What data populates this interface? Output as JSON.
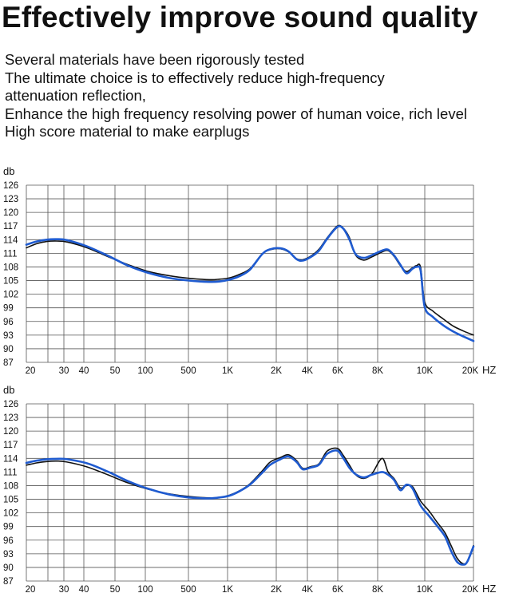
{
  "header": {
    "title": "Effectively improve sound quality",
    "lines": [
      "Several materials have been rigorously tested",
      "The ultimate choice is to effectively reduce high-frequency",
      "attenuation reflection,",
      "Enhance the high frequency resolving power of human voice, rich level",
      "High score material to make earplugs"
    ]
  },
  "colors": {
    "series_black": "#111111",
    "series_blue": "#1f5bd0",
    "grid": "#555555"
  },
  "chart_data": [
    {
      "type": "line",
      "ylabel": "db",
      "xlabel": "HZ",
      "ylim": [
        87,
        126
      ],
      "yticks": [
        126,
        123,
        120,
        117,
        114,
        111,
        108,
        105,
        102,
        99,
        96,
        93,
        90,
        87
      ],
      "xticks": [
        "20",
        "30",
        "40",
        "50",
        "100",
        "500",
        "1K",
        "2K",
        "4K",
        "6K",
        "8K",
        "10K",
        "20K"
      ],
      "grid": true,
      "series": [
        {
          "color": "#111111",
          "points": [
            [
              0,
              112.2
            ],
            [
              0.5,
              113.1
            ],
            [
              1,
              113.6
            ],
            [
              1.5,
              113.7
            ],
            [
              2,
              113.5
            ],
            [
              3,
              112.2
            ],
            [
              4,
              110.3
            ],
            [
              5,
              108.5
            ],
            [
              6,
              107.0
            ],
            [
              7,
              106.1
            ],
            [
              8,
              105.5
            ],
            [
              9,
              105.2
            ],
            [
              9.5,
              105.3
            ],
            [
              10,
              105.6
            ],
            [
              10.5,
              106.4
            ],
            [
              11,
              107.6
            ],
            [
              11.6,
              110.8
            ],
            [
              12,
              111.8
            ],
            [
              12.5,
              112.0
            ],
            [
              12.9,
              111.3
            ],
            [
              13.3,
              109.8
            ],
            [
              13.6,
              109.6
            ],
            [
              14,
              110.4
            ],
            [
              14.4,
              111.9
            ],
            [
              14.8,
              114.4
            ],
            [
              15.3,
              117.0
            ],
            [
              15.6,
              116.5
            ],
            [
              15.9,
              114.4
            ],
            [
              16.2,
              110.6
            ],
            [
              16.6,
              109.5
            ],
            [
              17,
              110.2
            ],
            [
              17.5,
              111.3
            ],
            [
              17.8,
              111.6
            ],
            [
              18.1,
              110.3
            ],
            [
              18.4,
              108.3
            ],
            [
              18.7,
              107.0
            ],
            [
              19,
              107.8
            ],
            [
              19.2,
              108.3
            ],
            [
              19.4,
              107.9
            ],
            [
              19.6,
              100.3
            ],
            [
              20,
              98.3
            ],
            [
              20.5,
              96.6
            ],
            [
              21,
              95.0
            ],
            [
              21.5,
              93.9
            ],
            [
              22,
              93.0
            ]
          ]
        },
        {
          "color": "#1f5bd0",
          "points": [
            [
              0,
              112.9
            ],
            [
              0.5,
              113.6
            ],
            [
              1,
              114.0
            ],
            [
              1.5,
              114.1
            ],
            [
              2,
              113.9
            ],
            [
              3,
              112.5
            ],
            [
              4,
              110.5
            ],
            [
              5,
              108.3
            ],
            [
              6,
              106.7
            ],
            [
              7,
              105.6
            ],
            [
              8,
              105.0
            ],
            [
              9,
              104.7
            ],
            [
              9.5,
              104.8
            ],
            [
              10,
              105.2
            ],
            [
              10.5,
              106.0
            ],
            [
              11,
              107.4
            ],
            [
              11.6,
              110.8
            ],
            [
              12,
              111.9
            ],
            [
              12.5,
              112.1
            ],
            [
              12.9,
              111.4
            ],
            [
              13.3,
              109.7
            ],
            [
              13.6,
              109.4
            ],
            [
              14,
              110.2
            ],
            [
              14.4,
              111.6
            ],
            [
              14.8,
              114.2
            ],
            [
              15.3,
              116.8
            ],
            [
              15.6,
              116.4
            ],
            [
              15.9,
              114.0
            ],
            [
              16.2,
              110.8
            ],
            [
              16.6,
              110.0
            ],
            [
              17,
              110.6
            ],
            [
              17.5,
              111.6
            ],
            [
              17.8,
              111.8
            ],
            [
              18.1,
              110.5
            ],
            [
              18.4,
              108.5
            ],
            [
              18.7,
              106.6
            ],
            [
              19,
              107.6
            ],
            [
              19.2,
              108.0
            ],
            [
              19.4,
              107.2
            ],
            [
              19.6,
              99.2
            ],
            [
              20,
              97.0
            ],
            [
              20.5,
              95.2
            ],
            [
              21,
              93.8
            ],
            [
              21.5,
              92.7
            ],
            [
              22,
              91.7
            ]
          ]
        }
      ]
    },
    {
      "type": "line",
      "ylabel": "db",
      "xlabel": "HZ",
      "ylim": [
        87,
        126
      ],
      "yticks": [
        126,
        123,
        120,
        117,
        114,
        111,
        108,
        105,
        102,
        99,
        96,
        93,
        90,
        87
      ],
      "xticks": [
        "20",
        "30",
        "40",
        "50",
        "100",
        "500",
        "1K",
        "2K",
        "4K",
        "6K",
        "8K",
        "10K",
        "20K"
      ],
      "grid": true,
      "series": [
        {
          "color": "#111111",
          "points": [
            [
              0,
              112.5
            ],
            [
              0.5,
              113.0
            ],
            [
              1,
              113.3
            ],
            [
              1.5,
              113.4
            ],
            [
              2,
              113.2
            ],
            [
              3,
              112.1
            ],
            [
              4,
              110.4
            ],
            [
              5,
              108.6
            ],
            [
              6,
              107.2
            ],
            [
              7,
              106.2
            ],
            [
              8,
              105.6
            ],
            [
              9,
              105.3
            ],
            [
              9.5,
              105.4
            ],
            [
              10,
              105.9
            ],
            [
              10.5,
              106.9
            ],
            [
              11,
              108.4
            ],
            [
              11.6,
              111.2
            ],
            [
              12,
              113.2
            ],
            [
              12.5,
              114.2
            ],
            [
              12.9,
              114.8
            ],
            [
              13.3,
              113.5
            ],
            [
              13.6,
              111.8
            ],
            [
              14,
              112.2
            ],
            [
              14.4,
              112.8
            ],
            [
              14.8,
              115.6
            ],
            [
              15.3,
              116.2
            ],
            [
              15.6,
              114.6
            ],
            [
              15.9,
              112.5
            ],
            [
              16.2,
              110.4
            ],
            [
              16.6,
              109.6
            ],
            [
              17,
              110.6
            ],
            [
              17.5,
              114.0
            ],
            [
              17.8,
              111.0
            ],
            [
              18.1,
              109.5
            ],
            [
              18.4,
              107.5
            ],
            [
              18.7,
              108.0
            ],
            [
              19,
              107.8
            ],
            [
              19.4,
              104.6
            ],
            [
              19.8,
              102.5
            ],
            [
              20.2,
              100.0
            ],
            [
              20.6,
              97.6
            ],
            [
              20.9,
              94.8
            ],
            [
              21.2,
              92.0
            ],
            [
              21.5,
              90.8
            ],
            [
              21.7,
              91.4
            ],
            [
              22,
              94.8
            ]
          ]
        },
        {
          "color": "#1f5bd0",
          "points": [
            [
              0,
              113.0
            ],
            [
              0.5,
              113.5
            ],
            [
              1,
              113.8
            ],
            [
              1.5,
              113.9
            ],
            [
              2,
              113.8
            ],
            [
              3,
              112.9
            ],
            [
              4,
              111.1
            ],
            [
              5,
              109.0
            ],
            [
              6,
              107.3
            ],
            [
              7,
              106.1
            ],
            [
              8,
              105.4
            ],
            [
              9,
              105.2
            ],
            [
              9.5,
              105.4
            ],
            [
              10,
              105.8
            ],
            [
              10.5,
              106.8
            ],
            [
              11,
              108.2
            ],
            [
              11.6,
              110.8
            ],
            [
              12,
              112.6
            ],
            [
              12.5,
              113.8
            ],
            [
              12.9,
              114.4
            ],
            [
              13.3,
              113.2
            ],
            [
              13.6,
              111.6
            ],
            [
              14,
              112.0
            ],
            [
              14.4,
              112.6
            ],
            [
              14.8,
              115.0
            ],
            [
              15.3,
              115.7
            ],
            [
              15.6,
              114.0
            ],
            [
              15.9,
              111.9
            ],
            [
              16.2,
              110.5
            ],
            [
              16.6,
              109.8
            ],
            [
              17,
              110.4
            ],
            [
              17.5,
              111.0
            ],
            [
              17.8,
              110.4
            ],
            [
              18.1,
              109.2
            ],
            [
              18.4,
              107.0
            ],
            [
              18.7,
              108.2
            ],
            [
              19,
              107.4
            ],
            [
              19.4,
              103.6
            ],
            [
              19.8,
              101.4
            ],
            [
              20.2,
              99.2
            ],
            [
              20.6,
              96.8
            ],
            [
              20.9,
              93.6
            ],
            [
              21.2,
              91.2
            ],
            [
              21.5,
              90.6
            ],
            [
              21.7,
              91.3
            ],
            [
              22,
              94.6
            ]
          ]
        }
      ]
    }
  ]
}
